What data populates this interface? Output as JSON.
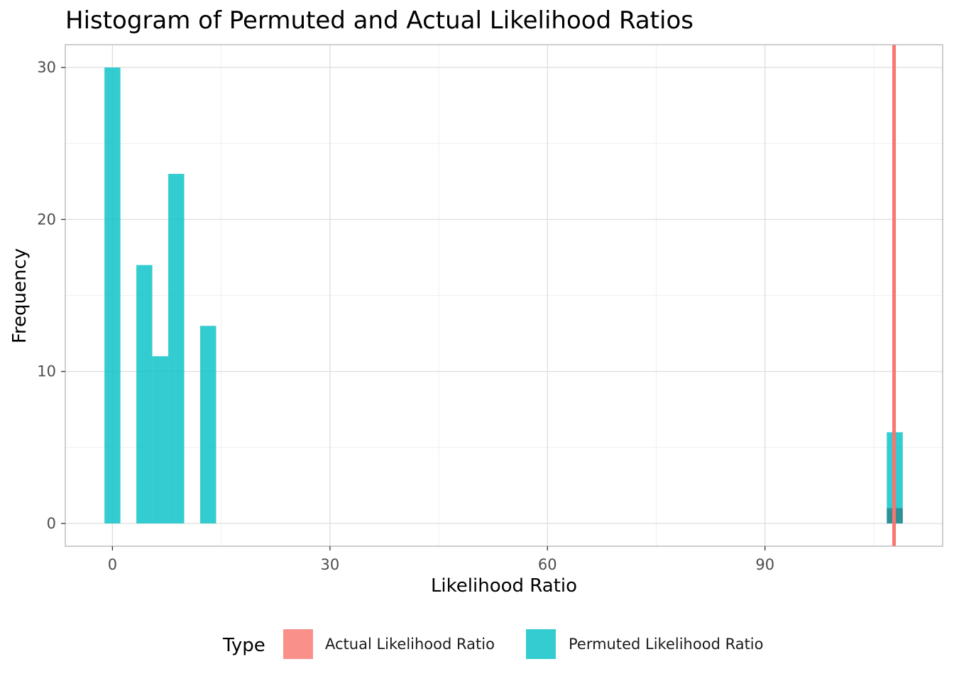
{
  "chart_data": {
    "type": "bar",
    "title": "Histogram of Permuted and Actual Likelihood Ratios",
    "xlabel": "Likelihood Ratio",
    "ylabel": "Frequency",
    "xlim": [
      -6.5,
      114.5
    ],
    "ylim": [
      -1.5,
      31.5
    ],
    "x_ticks": [
      0,
      30,
      60,
      90
    ],
    "x_minor_ticks": [
      15,
      45,
      75,
      105
    ],
    "y_ticks": [
      0,
      10,
      20,
      30
    ],
    "y_minor_ticks": [
      5,
      15,
      25
    ],
    "grid": true,
    "bin_width": 2.2,
    "series": [
      {
        "name": "Actual Likelihood Ratio",
        "color": "#F8766D",
        "bins": [
          {
            "x_start": 106.8,
            "x_end": 109.0,
            "count": 1
          }
        ],
        "vline_x": 107.8
      },
      {
        "name": "Permuted Likelihood Ratio",
        "color": "#00BFC4",
        "bins": [
          {
            "x_start": -1.1,
            "x_end": 1.1,
            "count": 30
          },
          {
            "x_start": 3.3,
            "x_end": 5.5,
            "count": 17
          },
          {
            "x_start": 5.5,
            "x_end": 7.7,
            "count": 11
          },
          {
            "x_start": 7.7,
            "x_end": 9.9,
            "count": 23
          },
          {
            "x_start": 12.1,
            "x_end": 14.3,
            "count": 13
          },
          {
            "x_start": 106.8,
            "x_end": 109.0,
            "count": 6
          }
        ]
      }
    ],
    "legend": {
      "title": "Type",
      "position": "bottom",
      "items": [
        "Actual Likelihood Ratio",
        "Permuted Likelihood Ratio"
      ]
    }
  }
}
